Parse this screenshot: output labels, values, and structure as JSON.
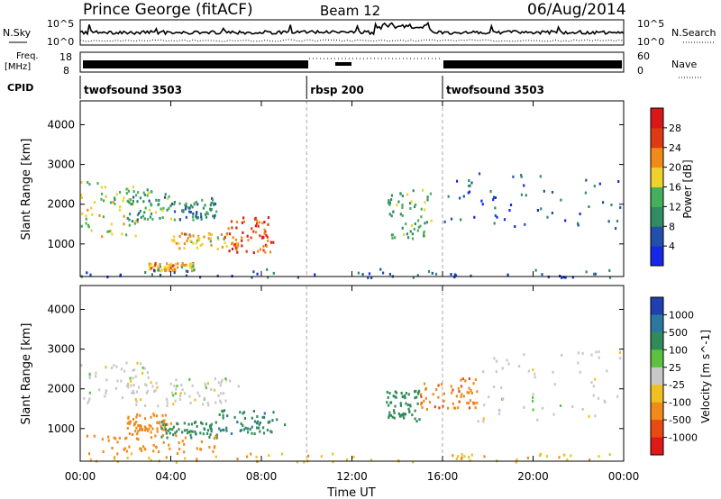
{
  "header": {
    "station": "Prince George (fitACF)",
    "beam": "Beam 12",
    "date": "06/Aug/2014"
  },
  "top_panels": {
    "nsky_label": "N.Sky",
    "nsky_ticks": [
      "10^5",
      "10^0"
    ],
    "nsearch_label": "N.Search",
    "nsearch_ticks": [
      "10^5",
      "10^0"
    ],
    "freq_label_1": "Freq.",
    "freq_label_2": "[MHz]",
    "freq_ticks": [
      "18",
      "8"
    ],
    "nave_label": "Nave",
    "nave_ticks": [
      "60",
      "0"
    ],
    "cpid_label": "CPID"
  },
  "cpid_segments": [
    {
      "label": "twofsound 3503",
      "start_hour": 0
    },
    {
      "label": "rbsp 200",
      "start_hour": 10
    },
    {
      "label": "twofsound 3503",
      "start_hour": 16
    }
  ],
  "axes": {
    "x_ticks": [
      "00:00",
      "04:00",
      "08:00",
      "12:00",
      "16:00",
      "20:00",
      "00:00"
    ],
    "x_label": "Time UT",
    "y_ticks": [
      "1000",
      "2000",
      "3000",
      "4000"
    ],
    "y_label": "Slant Range [km]"
  },
  "colorbars": {
    "power": {
      "label": "Power [dB]",
      "ticks": [
        "4",
        "8",
        "12",
        "16",
        "20",
        "24",
        "28"
      ],
      "colors": [
        "#1428e6",
        "#2050a8",
        "#2f8c64",
        "#44b05a",
        "#f0d02a",
        "#f08a18",
        "#e03a14",
        "#d81818"
      ]
    },
    "velocity": {
      "label": "Velocity [m s^-1]",
      "ticks": [
        "1000",
        "500",
        "100",
        "25",
        "-25",
        "-100",
        "-500",
        "-1000"
      ],
      "colors": [
        "#2040b0",
        "#2a78a0",
        "#2f8c5a",
        "#5cc040",
        "#c8c8c8",
        "#f0c020",
        "#f08a18",
        "#e84a14",
        "#e01818"
      ]
    }
  },
  "chart_data": [
    {
      "type": "heatmap",
      "title": "Prince George (fitACF) Beam 12 06/Aug/2014",
      "xlabel": "Time UT",
      "ylabel": "Slant Range [km]",
      "xlim": [
        0,
        24
      ],
      "ylim": [
        180,
        4600
      ],
      "colorbar_label": "Power [dB]",
      "colorbar_range": [
        0,
        32
      ],
      "features": [
        {
          "t_start": 0.0,
          "t_end": 2.5,
          "r_start": 1200,
          "r_end": 2600,
          "value": 16
        },
        {
          "t_start": 2.0,
          "t_end": 4.0,
          "r_start": 1600,
          "r_end": 2400,
          "value": 12
        },
        {
          "t_start": 4.0,
          "t_end": 6.0,
          "r_start": 1600,
          "r_end": 2200,
          "value": 10
        },
        {
          "t_start": 4.0,
          "t_end": 7.0,
          "r_start": 900,
          "r_end": 1300,
          "value": 20
        },
        {
          "t_start": 6.5,
          "t_end": 8.5,
          "r_start": 800,
          "r_end": 1700,
          "value": 26
        },
        {
          "t_start": 3.0,
          "t_end": 5.0,
          "r_start": 350,
          "r_end": 550,
          "value": 20
        },
        {
          "t_start": 13.5,
          "t_end": 15.5,
          "r_start": 1100,
          "r_end": 2400,
          "value": 14
        },
        {
          "t_start": 16.0,
          "t_end": 24.0,
          "r_start": 1400,
          "r_end": 2800,
          "value": 6
        },
        {
          "t_start": 0.0,
          "t_end": 24.0,
          "r_start": 180,
          "r_end": 400,
          "value": 6
        }
      ]
    },
    {
      "type": "heatmap",
      "title": "Prince George (fitACF) Beam 12 06/Aug/2014",
      "xlabel": "Time UT",
      "ylabel": "Slant Range [km]",
      "xlim": [
        0,
        24
      ],
      "ylim": [
        180,
        4600
      ],
      "colorbar_label": "Velocity [m s^-1]",
      "colorbar_range": [
        -1000,
        1000
      ],
      "features": [
        {
          "t_start": 0.0,
          "t_end": 3.0,
          "r_start": 1600,
          "r_end": 2700,
          "value": 0
        },
        {
          "t_start": 3.0,
          "t_end": 7.0,
          "r_start": 1600,
          "r_end": 2300,
          "value": 0
        },
        {
          "t_start": 2.0,
          "t_end": 4.0,
          "r_start": 900,
          "r_end": 1400,
          "value": -300
        },
        {
          "t_start": 3.5,
          "t_end": 6.0,
          "r_start": 800,
          "r_end": 1200,
          "value": 300
        },
        {
          "t_start": 6.0,
          "t_end": 9.0,
          "r_start": 900,
          "r_end": 1500,
          "value": 400
        },
        {
          "t_start": 0.0,
          "t_end": 6.0,
          "r_start": 300,
          "r_end": 900,
          "value": -200
        },
        {
          "t_start": 13.5,
          "t_end": 15.0,
          "r_start": 1200,
          "r_end": 2000,
          "value": 300
        },
        {
          "t_start": 15.0,
          "t_end": 17.5,
          "r_start": 1500,
          "r_end": 2300,
          "value": -400
        },
        {
          "t_start": 17.5,
          "t_end": 24.0,
          "r_start": 1200,
          "r_end": 3000,
          "value": 0
        },
        {
          "t_start": 0.0,
          "t_end": 24.0,
          "r_start": 180,
          "r_end": 400,
          "value": -80
        }
      ]
    }
  ]
}
